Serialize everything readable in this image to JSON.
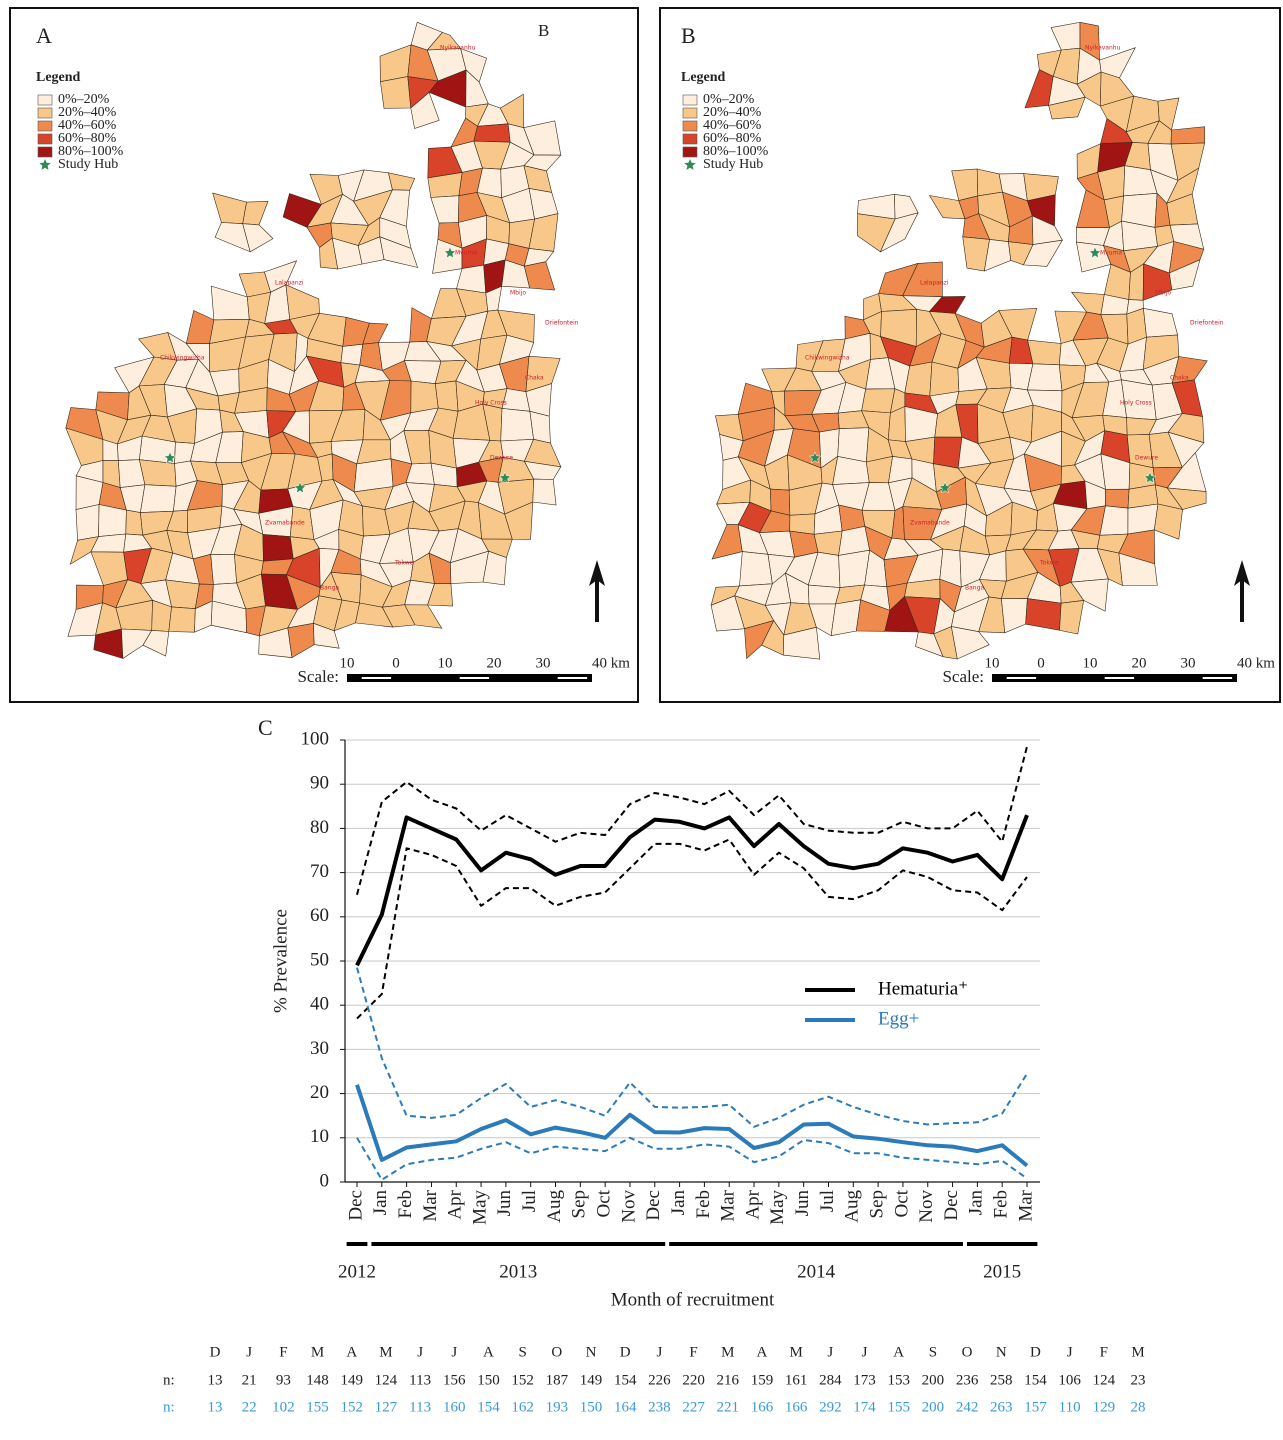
{
  "maps": [
    {
      "label": "A",
      "inset_label": "B"
    },
    {
      "label": "B"
    }
  ],
  "map_legend": {
    "title": "Legend",
    "items": [
      {
        "label": "0%–20%",
        "color": "#fdeedd"
      },
      {
        "label": "20%–40%",
        "color": "#f8c88a"
      },
      {
        "label": "40%–60%",
        "color": "#ee8a4e"
      },
      {
        "label": "60%–80%",
        "color": "#d8432a"
      },
      {
        "label": "80%–100%",
        "color": "#a01414"
      }
    ],
    "hub_label": "Study Hub",
    "hub_color": "#2e8b57"
  },
  "place_names": [
    "Nyikavanhu",
    "Mvuma",
    "Lalapanzi",
    "Mbijo",
    "Driefontein",
    "Chikwingwizha",
    "Holy Cross",
    "Chaka",
    "Zvamabande",
    "Tokwe",
    "Banga",
    "Dewure"
  ],
  "map_scale": {
    "label": "Scale:",
    "ticks": [
      "10",
      "0",
      "10",
      "20",
      "30",
      "40 km"
    ]
  },
  "chart_data": {
    "type": "line",
    "panel_label": "C",
    "y_label": "% Prevalence",
    "x_label": "Month of recruitment",
    "categories": [
      "Dec",
      "Jan",
      "Feb",
      "Mar",
      "Apr",
      "May",
      "Jun",
      "Jul",
      "Aug",
      "Sep",
      "Oct",
      "Nov",
      "Dec",
      "Jan",
      "Feb",
      "Mar",
      "Apr",
      "May",
      "Jun",
      "Jul",
      "Aug",
      "Sep",
      "Oct",
      "Nov",
      "Dec",
      "Jan",
      "Feb",
      "Mar"
    ],
    "years": [
      {
        "label": "2012",
        "months": 1
      },
      {
        "label": "2013",
        "months": 12
      },
      {
        "label": "2014",
        "months": 12
      },
      {
        "label": "2015",
        "months": 3
      }
    ],
    "ylim": [
      0,
      100
    ],
    "yticks": [
      0,
      10,
      20,
      30,
      40,
      50,
      60,
      70,
      80,
      90,
      100
    ],
    "grid": true,
    "series": [
      {
        "name": "Hematuria⁺",
        "color": "#000000",
        "values": [
          49,
          60.5,
          82.5,
          80,
          77.5,
          70.5,
          74.5,
          73,
          69.5,
          71.5,
          71.5,
          78,
          82,
          81.5,
          80,
          82.5,
          76,
          81,
          76,
          72,
          71,
          72,
          75.5,
          74.5,
          72.5,
          74,
          68.5,
          83
        ],
        "ci_upper": [
          65,
          86,
          90.5,
          86.5,
          84.5,
          79.5,
          83,
          80,
          77,
          79,
          78.5,
          85.5,
          88,
          87,
          85.5,
          88.5,
          83,
          87.5,
          81,
          79.5,
          79,
          79,
          81.5,
          80,
          80,
          84,
          77,
          98.5
        ],
        "ci_lower": [
          37,
          42.5,
          75.5,
          74,
          71.5,
          62.5,
          66.5,
          66.5,
          62.5,
          64.5,
          65.5,
          71,
          76.5,
          76.5,
          75,
          77.5,
          69.5,
          74.5,
          71,
          64.5,
          64,
          66,
          70.5,
          69,
          66,
          65.5,
          61.5,
          69
        ]
      },
      {
        "name": "Egg+",
        "color": "#2b7bba",
        "values": [
          22,
          5,
          7.8,
          8.5,
          9.2,
          12,
          14,
          10.8,
          12.3,
          11.3,
          10,
          15.2,
          11.3,
          11.2,
          12.2,
          12,
          7.7,
          9,
          13,
          13.2,
          10.3,
          9.8,
          9,
          8.3,
          8,
          7,
          8.3,
          3.7
        ],
        "ci_upper": [
          48.5,
          28,
          15,
          14.5,
          15.2,
          19,
          22.2,
          17,
          18.5,
          17,
          15,
          22.5,
          17,
          16.8,
          17,
          17.5,
          12.5,
          14.5,
          17.5,
          19.3,
          17,
          15.2,
          13.8,
          13,
          13.3,
          13.5,
          15.5,
          24.5
        ],
        "ci_lower": [
          10,
          0.5,
          4,
          5,
          5.5,
          7.5,
          9,
          6.5,
          8,
          7.5,
          7,
          10,
          7.5,
          7.5,
          8.5,
          8,
          4.5,
          5.8,
          9.5,
          8.8,
          6.5,
          6.5,
          5.5,
          5,
          4.5,
          4,
          4.8,
          0.8
        ]
      }
    ]
  },
  "n_table": {
    "months": [
      "D",
      "J",
      "F",
      "M",
      "A",
      "M",
      "J",
      "J",
      "A",
      "S",
      "O",
      "N",
      "D",
      "J",
      "F",
      "M",
      "A",
      "M",
      "J",
      "J",
      "A",
      "S",
      "O",
      "N",
      "D",
      "J",
      "F",
      "M"
    ],
    "rows": [
      {
        "label": "n:",
        "color": "#222222",
        "values": [
          13,
          21,
          93,
          148,
          149,
          124,
          113,
          156,
          150,
          152,
          187,
          149,
          154,
          226,
          220,
          216,
          159,
          161,
          284,
          173,
          153,
          200,
          236,
          258,
          154,
          106,
          124,
          23
        ]
      },
      {
        "label": "n:",
        "color": "#3a9ad9",
        "values": [
          13,
          22,
          102,
          155,
          152,
          127,
          113,
          160,
          154,
          162,
          193,
          150,
          164,
          238,
          227,
          221,
          166,
          166,
          292,
          174,
          155,
          200,
          242,
          263,
          157,
          110,
          129,
          28
        ]
      }
    ]
  }
}
